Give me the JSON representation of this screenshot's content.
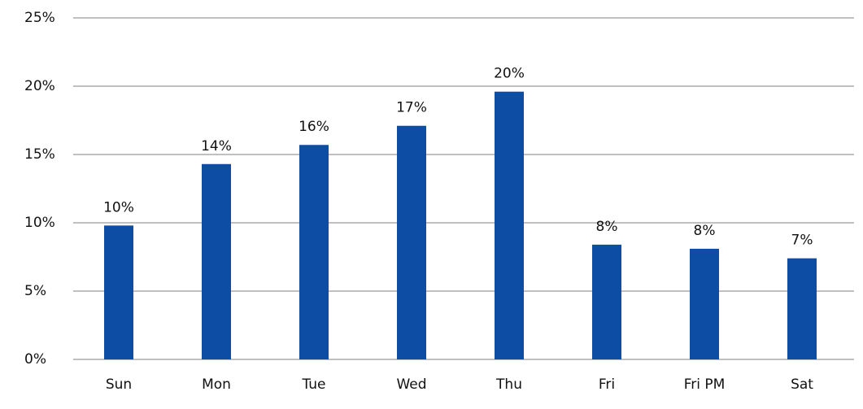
{
  "chart_data": {
    "type": "bar",
    "categories": [
      "Sun",
      "Mon",
      "Tue",
      "Wed",
      "Thu",
      "Fri",
      "Fri PM",
      "Sat"
    ],
    "values": [
      9.8,
      14.3,
      15.7,
      17.1,
      19.6,
      8.4,
      8.1,
      7.4
    ],
    "value_labels": [
      "10%",
      "14%",
      "16%",
      "17%",
      "20%",
      "8%",
      "8%",
      "7%"
    ],
    "color": "#0e4da4",
    "ylim": [
      0,
      25
    ],
    "yticks": [
      {
        "value": 0,
        "label": "0%"
      },
      {
        "value": 5,
        "label": "5%"
      },
      {
        "value": 10,
        "label": "10%"
      },
      {
        "value": 15,
        "label": "15%"
      },
      {
        "value": 20,
        "label": "20%"
      },
      {
        "value": 25,
        "label": "25%"
      }
    ],
    "grid": true
  }
}
